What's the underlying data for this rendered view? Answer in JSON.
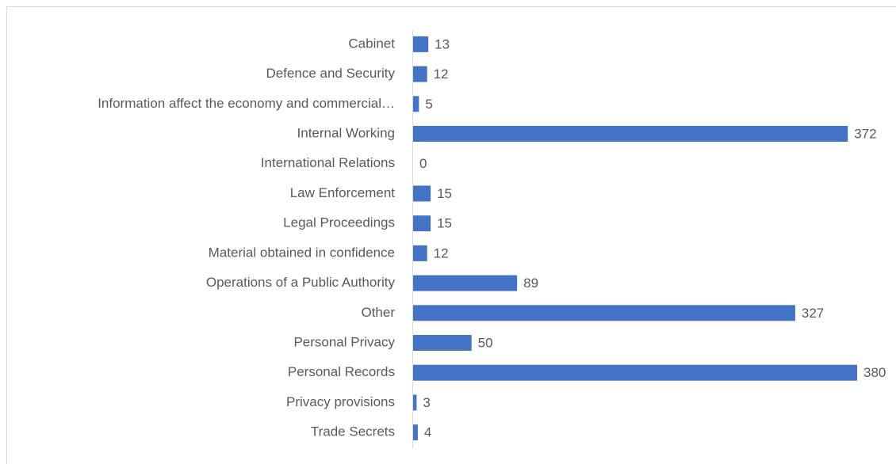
{
  "chart_data": {
    "type": "bar",
    "orientation": "horizontal",
    "categories": [
      "Cabinet",
      "Defence and Security",
      "Information affect the economy and commercial…",
      "Internal Working",
      "International Relations",
      "Law Enforcement",
      "Legal Proceedings",
      "Material obtained in confidence",
      "Operations of a Public Authority",
      "Other",
      "Personal Privacy",
      "Personal Records",
      "Privacy provisions",
      "Trade Secrets"
    ],
    "values": [
      13,
      12,
      5,
      372,
      0,
      15,
      15,
      12,
      89,
      327,
      50,
      380,
      3,
      4
    ],
    "color": "#4472c4",
    "grid": false
  }
}
